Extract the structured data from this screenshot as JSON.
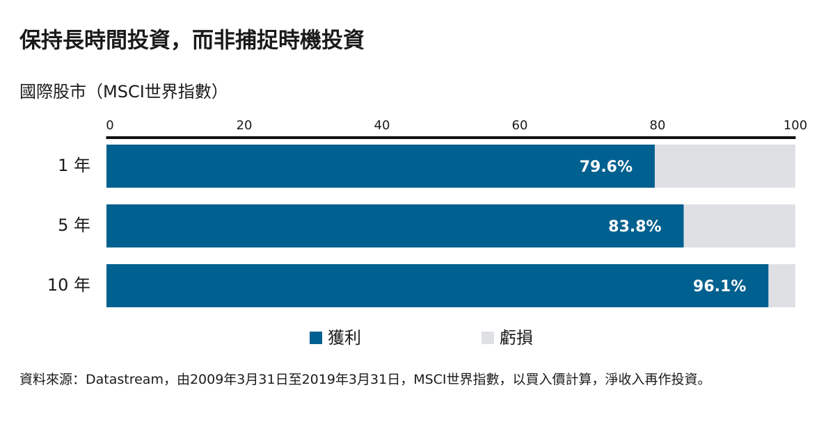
{
  "chart_data": {
    "type": "bar",
    "orientation": "horizontal",
    "stacked": true,
    "title": "保持長時間投資，而非捕捉時機投資",
    "subtitle": "國際股市（MSCI世界指數）",
    "categories": [
      "1 年",
      "5 年",
      "10 年"
    ],
    "series": [
      {
        "name": "獲利",
        "color": "#00608f",
        "values": [
          79.6,
          83.8,
          96.1
        ],
        "value_labels": [
          "79.6%",
          "83.8%",
          "96.1%"
        ]
      },
      {
        "name": "虧損",
        "color": "#dfe0e4",
        "values": [
          20.4,
          16.2,
          3.9
        ]
      }
    ],
    "xlim": [
      0,
      100
    ],
    "xticks": [
      0,
      20,
      40,
      60,
      80,
      100
    ],
    "legend": "bottom",
    "source": "資料來源：Datastream，由2009年3月31日至2019年3月31日，MSCI世界指數，以買入價計算，淨收入再作投資。"
  }
}
